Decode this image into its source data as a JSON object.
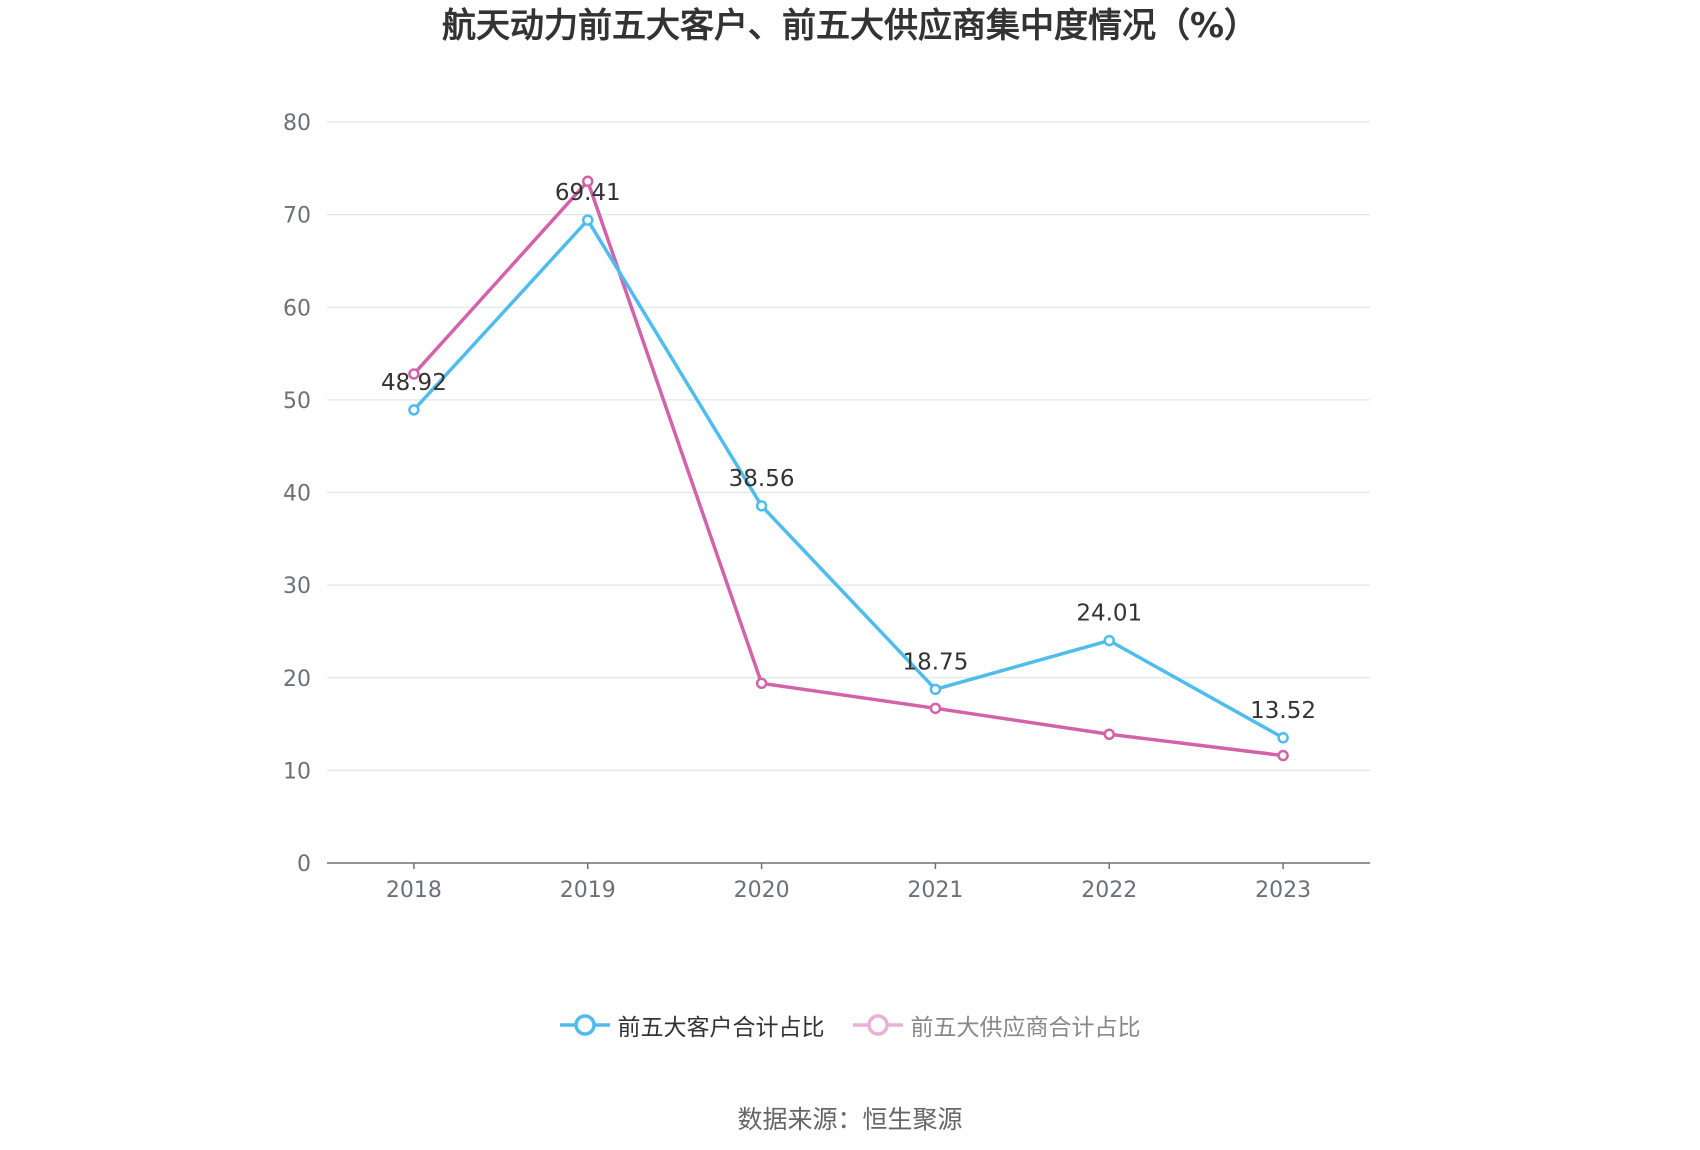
{
  "chart_data": {
    "type": "line",
    "title": "航天动力前五大客户、前五大供应商集中度情况（%）",
    "categories": [
      "2018",
      "2019",
      "2020",
      "2021",
      "2022",
      "2023"
    ],
    "series": [
      {
        "name": "前五大客户合计占比",
        "color": "#4fbcee",
        "values": [
          48.92,
          69.41,
          38.56,
          18.75,
          24.01,
          13.52
        ],
        "labels": [
          "48.92",
          "69.41",
          "38.56",
          "18.75",
          "24.01",
          "13.52"
        ],
        "show_labels": true
      },
      {
        "name": "前五大供应商合计占比",
        "color": "#d462ab",
        "values": [
          52.8,
          73.6,
          19.4,
          16.7,
          13.9,
          11.6
        ],
        "show_labels": false
      }
    ],
    "ylim": [
      0,
      80
    ],
    "yticks": [
      "0",
      "10",
      "20",
      "30",
      "40",
      "50",
      "60",
      "70",
      "80"
    ],
    "grid": true,
    "legend_position": "bottom-center"
  },
  "source": "数据来源：恒生聚源"
}
